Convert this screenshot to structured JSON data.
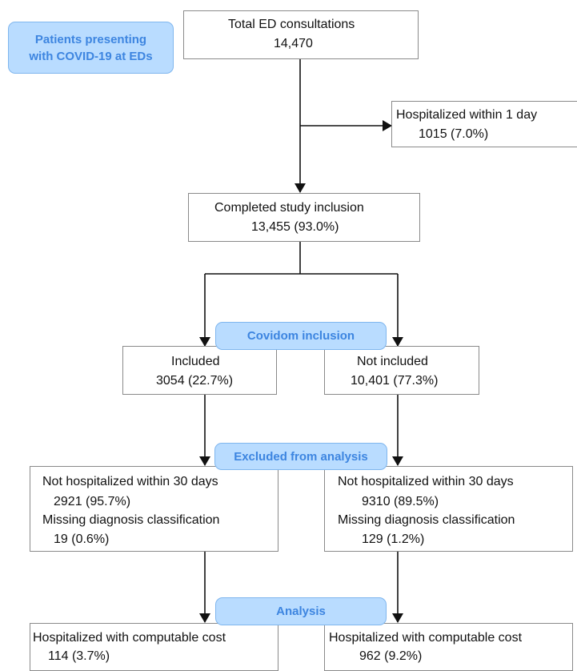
{
  "header_label": [
    "Patients presenting",
    "with COVID-19 at EDs"
  ],
  "total": {
    "title": "Total ED consultations",
    "value": "14,470"
  },
  "hospitalized_1day": {
    "title": "Hospitalized within 1 day",
    "value": "1015 (7.0%)"
  },
  "completed": {
    "title": "Completed study inclusion",
    "value": "13,455 (93.0%)"
  },
  "covidom_label": "Covidom inclusion",
  "included": {
    "title": "Included",
    "value": "3054 (22.7%)"
  },
  "not_included": {
    "title": "Not included",
    "value": "10,401 (77.3%)"
  },
  "excluded_label": "Excluded from analysis",
  "excluded_left": {
    "not_hosp_label": "Not hospitalized within 30 days",
    "not_hosp_value": "2921 (95.7%)",
    "missing_label": "Missing diagnosis classification",
    "missing_value": "19 (0.6%)"
  },
  "excluded_right": {
    "not_hosp_label": "Not hospitalized within 30 days",
    "not_hosp_value": "9310 (89.5%)",
    "missing_label": "Missing diagnosis classification",
    "missing_value": "129 (1.2%)"
  },
  "analysis_label": "Analysis",
  "analysis_left": {
    "title": "Hospitalized with computable cost",
    "value": "114 (3.7%)"
  },
  "analysis_right": {
    "title": "Hospitalized with computable cost",
    "value": "962 (9.2%)"
  },
  "colors": {
    "pill_fill": "#b9dcff",
    "pill_text": "#3d85e0",
    "box_border": "#8a8a8a"
  }
}
